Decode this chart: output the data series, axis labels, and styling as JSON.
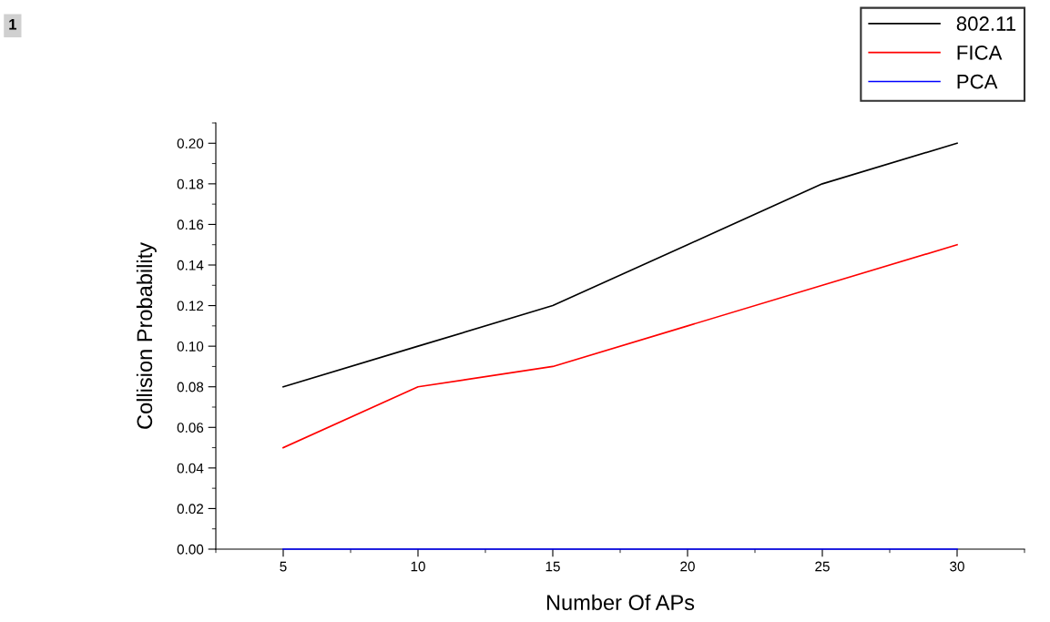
{
  "chart_data": {
    "type": "line",
    "xlabel": "Number Of APs",
    "ylabel": "Collision Probability",
    "annotations": [
      "1"
    ],
    "x": [
      5,
      10,
      15,
      20,
      25,
      30
    ],
    "series": [
      {
        "name": "802.11",
        "color": "#000000",
        "values": [
          0.08,
          0.1,
          0.12,
          0.15,
          0.18,
          0.2
        ]
      },
      {
        "name": "FICA",
        "color": "#ff0000",
        "values": [
          0.05,
          0.08,
          0.09,
          0.11,
          0.13,
          0.15
        ]
      },
      {
        "name": "PCA",
        "color": "#0000ff",
        "values": [
          0,
          0,
          0,
          0,
          0,
          0
        ]
      }
    ],
    "xlim": [
      2.5,
      32.5
    ],
    "xticks": [
      5,
      10,
      15,
      20,
      25,
      30
    ],
    "ylim": [
      0,
      0.21
    ],
    "yticks": [
      {
        "value": 0,
        "label": "0.00"
      },
      {
        "value": 0.02,
        "label": "0.02"
      },
      {
        "value": 0.04,
        "label": "0.04"
      },
      {
        "value": 0.06,
        "label": "0.06"
      },
      {
        "value": 0.08,
        "label": "0.08"
      },
      {
        "value": 0.1,
        "label": "0.10"
      },
      {
        "value": 0.12,
        "label": "0.12"
      },
      {
        "value": 0.14,
        "label": "0.14"
      },
      {
        "value": 0.16,
        "label": "0.16"
      },
      {
        "value": 0.18,
        "label": "0.18"
      },
      {
        "value": 0.2,
        "label": "0.20"
      }
    ],
    "grid": false,
    "legend": "top right",
    "marker": "none",
    "line_style": "solid"
  }
}
